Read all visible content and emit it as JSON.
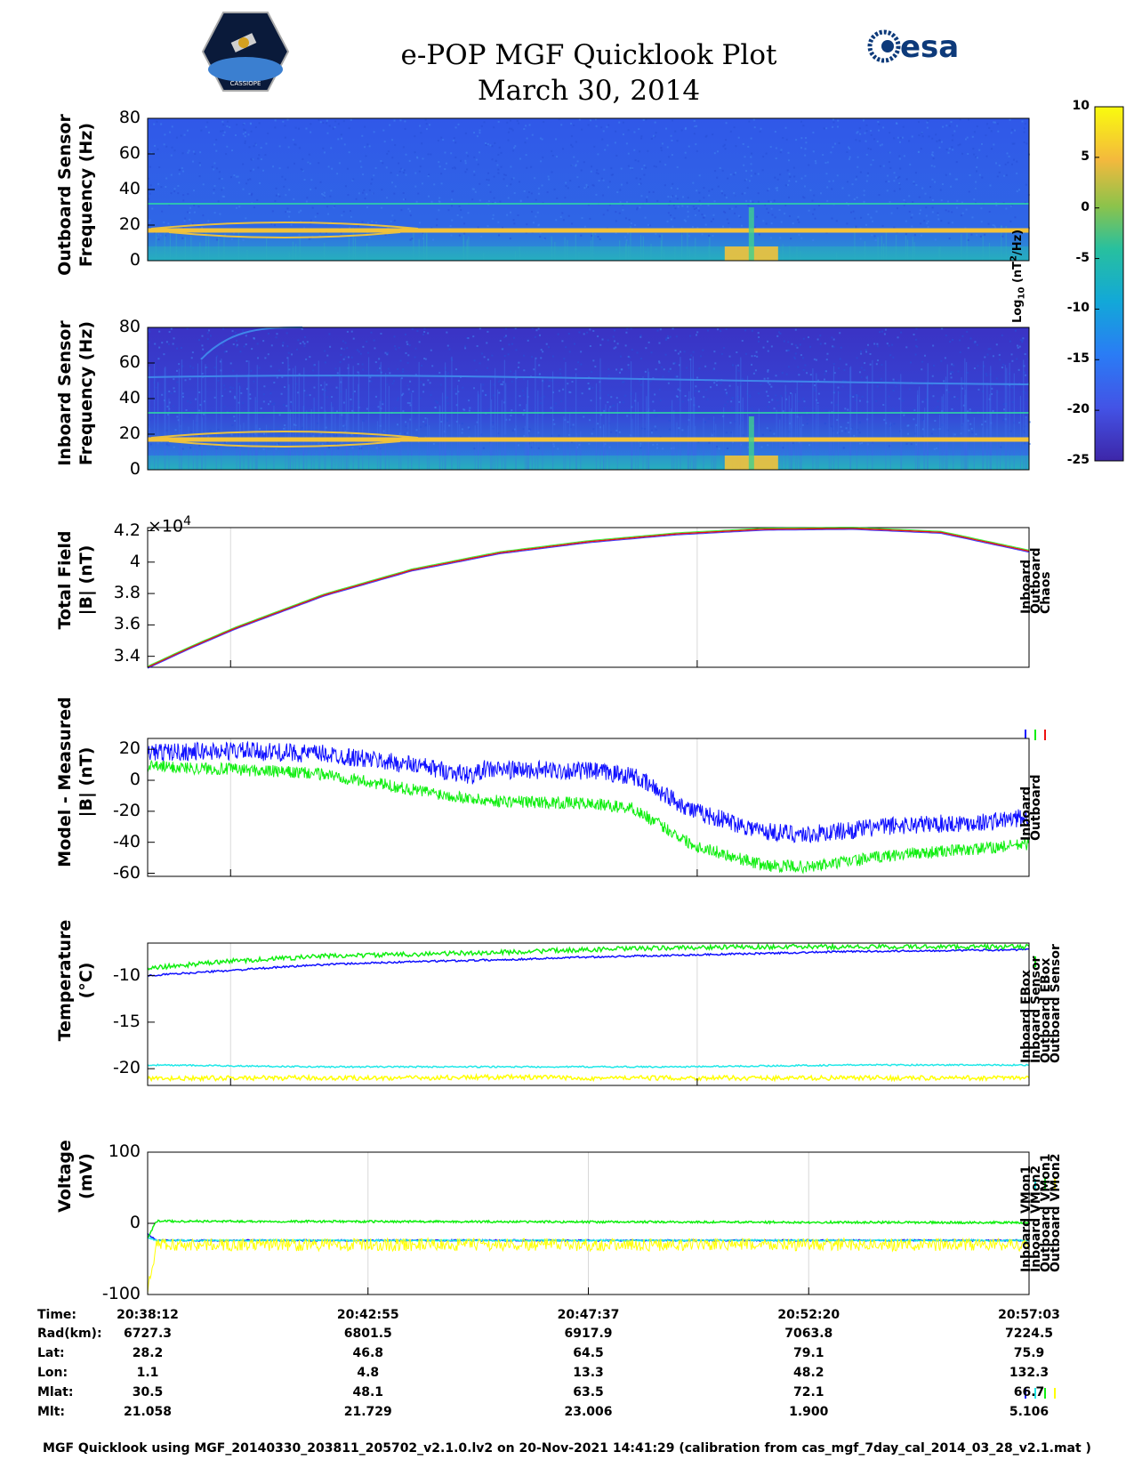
{
  "title": {
    "line1": "e-POP MGF Quicklook Plot",
    "line2": "March 30, 2014"
  },
  "logos": {
    "left": "CASSIOPE",
    "right": "esa"
  },
  "colors": {
    "blue": "#1010ff",
    "green": "#10ee10",
    "red": "#ee1010",
    "cyan": "#20e8e8",
    "yellow": "#ffff00",
    "axis": "#000000",
    "grid": "#d8d8d8"
  },
  "chart_data": [
    {
      "type": "heatmap",
      "ylabel": [
        "Outboard Sensor",
        "Frequency (Hz)"
      ],
      "ylim": [
        0,
        80
      ],
      "yticks": [
        "80",
        "60",
        "40",
        "20",
        "0"
      ],
      "lines_hz": [
        17,
        32
      ]
    },
    {
      "type": "heatmap",
      "ylabel": [
        "Inboard Sensor",
        "Frequency (Hz)"
      ],
      "ylim": [
        0,
        80
      ],
      "yticks": [
        "80",
        "60",
        "40",
        "20",
        "0"
      ],
      "lines_hz": [
        17,
        32,
        50
      ]
    },
    {
      "type": "line",
      "ylabel": [
        "Total Field",
        "|B| (nT)"
      ],
      "multiplier": "×10",
      "multiplier_exp": "4",
      "ylim": [
        3.33,
        4.22
      ],
      "yticks": [
        "4.2",
        "4",
        "3.8",
        "3.6",
        "3.4"
      ],
      "legend": [
        "Inboard",
        "Outboard",
        "Chaos"
      ],
      "x": [
        0,
        0.05,
        0.1,
        0.2,
        0.3,
        0.4,
        0.5,
        0.6,
        0.7,
        0.8,
        0.9,
        1.0
      ],
      "series": [
        {
          "name": "Chaos",
          "values": [
            3.33,
            3.46,
            3.58,
            3.79,
            3.95,
            4.06,
            4.13,
            4.18,
            4.21,
            4.215,
            4.19,
            4.07
          ]
        }
      ]
    },
    {
      "type": "line",
      "ylabel": [
        "Model - Measured",
        "|B| (nT)"
      ],
      "ylim": [
        -62,
        27
      ],
      "yticks": [
        "20",
        "0",
        "-20",
        "-40",
        "-60"
      ],
      "legend": [
        "Inboard",
        "Outboard"
      ],
      "x": [
        0,
        0.1,
        0.2,
        0.3,
        0.37,
        0.38,
        0.5,
        0.55,
        0.62,
        0.7,
        0.75,
        0.85,
        0.95,
        1.0
      ],
      "series": [
        {
          "name": "Inboard",
          "values": [
            18,
            19,
            17,
            10,
            3,
            7,
            6,
            3,
            -20,
            -33,
            -35,
            -29,
            -27,
            -24
          ]
        },
        {
          "name": "Outboard",
          "values": [
            9,
            7,
            4,
            -6,
            -12,
            -13,
            -15,
            -18,
            -42,
            -55,
            -56,
            -48,
            -44,
            -41
          ]
        }
      ]
    },
    {
      "type": "line",
      "ylabel": [
        "Temperature",
        "(°C)"
      ],
      "ylim": [
        -21.8,
        -6.5
      ],
      "yticks": [
        "-10",
        "-15",
        "-20"
      ],
      "legend": [
        "Inboard EBox",
        "Inboard Sensor",
        "Outboard EBox",
        "Outboard Sensor"
      ],
      "x": [
        0,
        0.1,
        0.2,
        0.3,
        0.4,
        0.5,
        0.6,
        0.7,
        0.8,
        0.9,
        1.0
      ],
      "series": [
        {
          "name": "Inboard EBox",
          "values": [
            -10.0,
            -9.4,
            -8.8,
            -8.5,
            -8.3,
            -8.0,
            -7.8,
            -7.6,
            -7.4,
            -7.3,
            -7.2
          ]
        },
        {
          "name": "Outboard EBox",
          "values": [
            -9.2,
            -8.4,
            -7.9,
            -7.7,
            -7.5,
            -7.2,
            -7.0,
            -6.9,
            -6.9,
            -6.9,
            -6.9
          ]
        },
        {
          "name": "Inboard Sensor",
          "values": [
            -19.6,
            -19.7,
            -19.8,
            -19.8,
            -19.8,
            -19.8,
            -19.8,
            -19.7,
            -19.6,
            -19.6,
            -19.6
          ]
        },
        {
          "name": "Outboard Sensor",
          "values": [
            -21.1,
            -21.0,
            -21.0,
            -21.0,
            -20.9,
            -21.0,
            -21.0,
            -21.0,
            -21.0,
            -21.0,
            -21.0
          ]
        }
      ]
    },
    {
      "type": "line",
      "ylabel": [
        "Voltage",
        "(mV)"
      ],
      "ylim": [
        -100,
        100
      ],
      "yticks": [
        "100",
        "0",
        "-100"
      ],
      "legend": [
        "Inboard VMon1",
        "Inboard VMon2",
        "Outboard VMon1",
        "Outboard VMon2"
      ],
      "x": [
        0,
        0.01,
        1.0
      ],
      "series": [
        {
          "name": "Inboard VMon1",
          "values": [
            -15,
            -24,
            -24
          ]
        },
        {
          "name": "Inboard VMon2",
          "values": [
            -20,
            -24,
            -24
          ]
        },
        {
          "name": "Outboard VMon1",
          "values": [
            -20,
            3,
            1
          ]
        },
        {
          "name": "Outboard VMon2",
          "values": [
            -95,
            -30,
            -30
          ]
        }
      ]
    },
    {
      "type": "heatmap",
      "name": "colorbar",
      "ylabel": "Log",
      "ylabel_sub": "10",
      "ylabel_tail": " (nT",
      "ylabel_sup": "2",
      "ylabel_end": "/Hz)",
      "ylim": [
        -25,
        10
      ],
      "yticks": [
        "10",
        "5",
        "0",
        "-5",
        "-10",
        "-15",
        "-20",
        "-25"
      ]
    }
  ],
  "table": {
    "labels": [
      "Time:",
      "Rad(km):",
      "Lat:",
      "Lon:",
      "Mlat:",
      "Mlt:"
    ],
    "columns": [
      [
        "20:38:12",
        "6727.3",
        "28.2",
        "1.1",
        "30.5",
        "21.058"
      ],
      [
        "20:42:55",
        "6801.5",
        "46.8",
        "4.8",
        "48.1",
        "21.729"
      ],
      [
        "20:47:37",
        "6917.9",
        "64.5",
        "13.3",
        "63.5",
        "23.006"
      ],
      [
        "20:52:20",
        "7063.8",
        "79.1",
        "48.2",
        "72.1",
        "1.900"
      ],
      [
        "20:57:03",
        "7224.5",
        "75.9",
        "132.3",
        "66.7",
        "5.106"
      ]
    ]
  },
  "footer": "MGF Quicklook using MGF_20140330_203811_205702_v2.1.0.lv2 on 20-Nov-2021 14:41:29 (calibration from cas_mgf_7day_cal_2014_03_28_v2.1.mat )"
}
